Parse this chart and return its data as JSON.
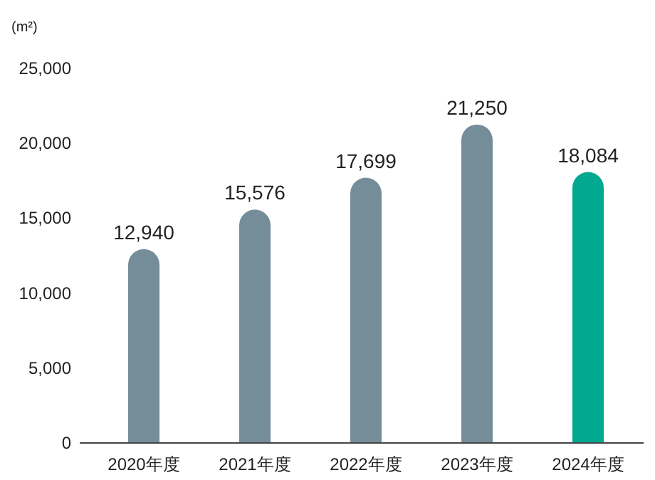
{
  "chart_data": {
    "type": "bar",
    "ylabel": "(m²)",
    "categories": [
      "2020年度",
      "2021年度",
      "2022年度",
      "2023年度",
      "2024年度"
    ],
    "values": [
      12940,
      15576,
      17699,
      21250,
      18084
    ],
    "colors": [
      "#748d99",
      "#748d99",
      "#748d99",
      "#748d99",
      "#00a98f"
    ],
    "ylim": [
      0,
      25000
    ],
    "yticks": [
      {
        "value": 0,
        "label": "0"
      },
      {
        "value": 5000,
        "label": "5,000"
      },
      {
        "value": 10000,
        "label": "10,000"
      },
      {
        "value": 15000,
        "label": "15,000"
      },
      {
        "value": 20000,
        "label": "20,000"
      },
      {
        "value": 25000,
        "label": "25,000"
      }
    ],
    "value_labels": [
      "12,940",
      "15,576",
      "17,699",
      "21,250",
      "18,084"
    ],
    "grid": false
  }
}
